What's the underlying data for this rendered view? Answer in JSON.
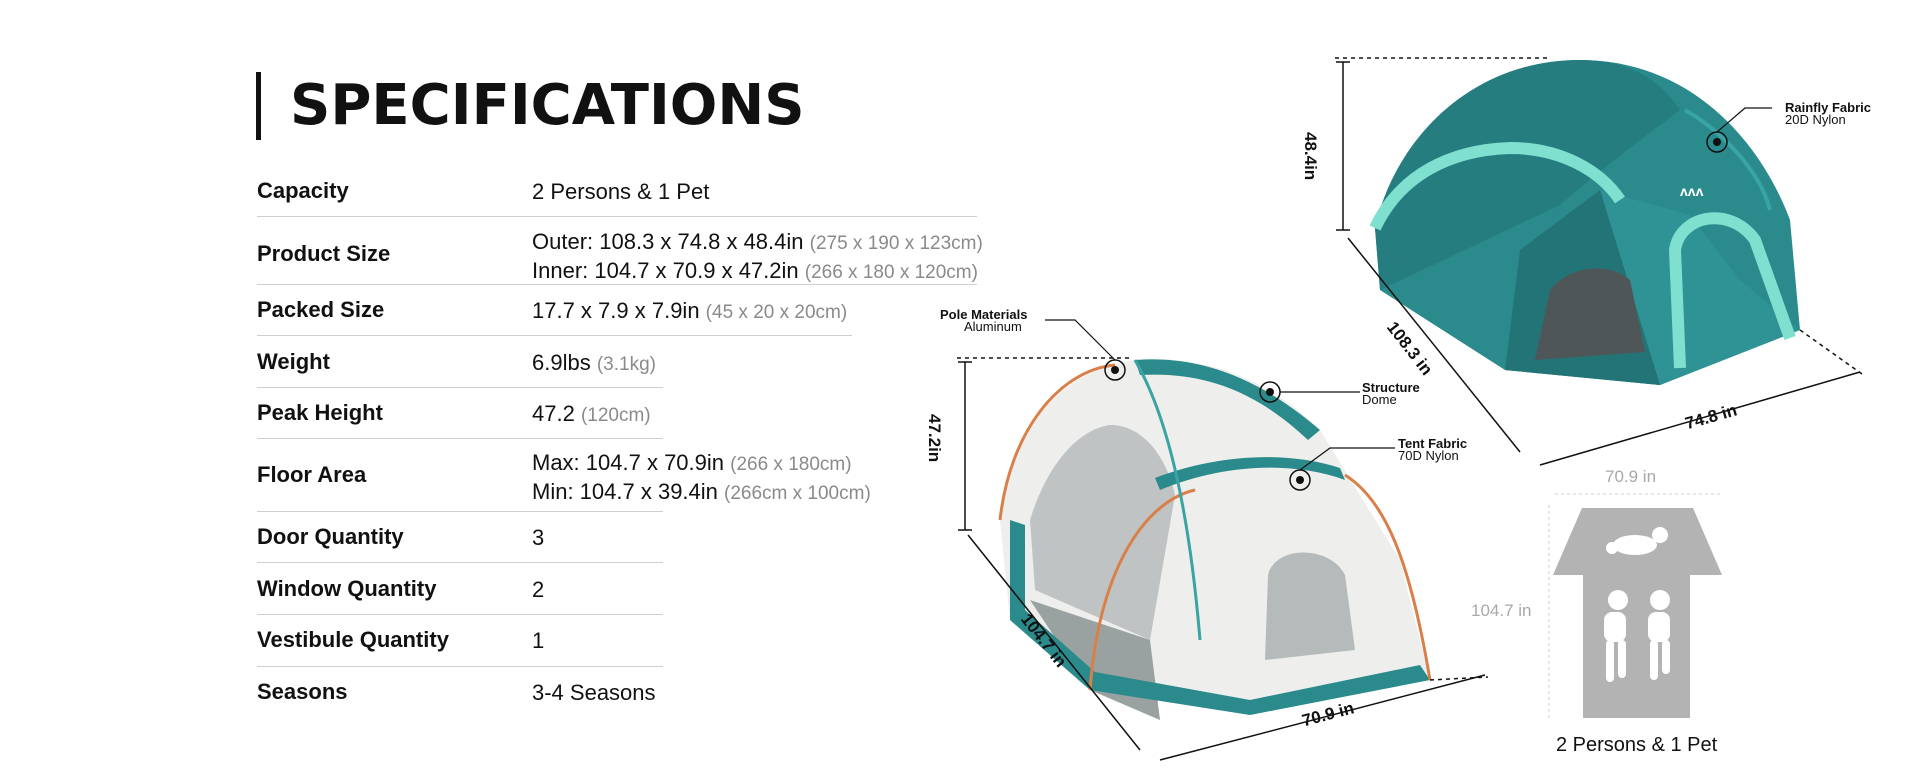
{
  "title": "SPECIFICATIONS",
  "specs": [
    {
      "label": "Capacity",
      "lines": [
        {
          "main": "2 Persons & 1 Pet",
          "sub": ""
        }
      ]
    },
    {
      "label": "Product Size",
      "lines": [
        {
          "main": "Outer: 108.3 x 74.8 x 48.4in ",
          "sub": "(275 x 190 x 123cm)"
        },
        {
          "main": "Inner: 104.7 x 70.9 x 47.2in ",
          "sub": "(266 x 180 x 120cm)"
        }
      ]
    },
    {
      "label": "Packed Size",
      "lines": [
        {
          "main": "17.7 x 7.9 x 7.9in ",
          "sub": "(45 x 20 x 20cm)"
        }
      ]
    },
    {
      "label": "Weight",
      "lines": [
        {
          "main": "6.9lbs ",
          "sub": "(3.1kg)"
        }
      ]
    },
    {
      "label": "Peak Height",
      "lines": [
        {
          "main": "47.2 ",
          "sub": "(120cm)"
        }
      ]
    },
    {
      "label": "Floor Area",
      "lines": [
        {
          "main": "Max: 104.7 x 70.9in ",
          "sub": "(266 x 180cm)"
        },
        {
          "main": "Min: 104.7 x 39.4in ",
          "sub": "(266cm x 100cm)"
        }
      ]
    },
    {
      "label": "Door Quantity",
      "lines": [
        {
          "main": "3",
          "sub": ""
        }
      ]
    },
    {
      "label": "Window Quantity",
      "lines": [
        {
          "main": "2",
          "sub": ""
        }
      ]
    },
    {
      "label": "Vestibule Quantity",
      "lines": [
        {
          "main": "1",
          "sub": ""
        }
      ]
    },
    {
      "label": "Seasons",
      "lines": [
        {
          "main": "3-4 Seasons",
          "sub": ""
        }
      ]
    }
  ],
  "outer_tent": {
    "height_label": "48.4in",
    "length_label": "108.3 in",
    "width_label": "74.8 in",
    "callout_title": "Rainfly Fabric",
    "callout_sub": "20D Nylon",
    "colors": {
      "fly": "#2a8a8c",
      "fly_dark": "#1f6f72",
      "stripe": "#7fe0cf"
    }
  },
  "inner_tent": {
    "height_label": "47.2in",
    "length_label": "104.7 in",
    "width_label": "70.9 in",
    "callouts": [
      {
        "title": "Pole Materials",
        "sub": "Aluminum"
      },
      {
        "title": "Structure",
        "sub": "Dome"
      },
      {
        "title": "Tent Fabric",
        "sub": "70D Nylon"
      }
    ],
    "colors": {
      "mesh": "#eeeeec",
      "floor": "#2a8a8c",
      "pole": "#d9804a"
    }
  },
  "floor_plan": {
    "width_label": "70.9 in",
    "length_label": "104.7 in",
    "caption": "2 Persons & 1 Pet",
    "color": "#b3b3b3"
  }
}
